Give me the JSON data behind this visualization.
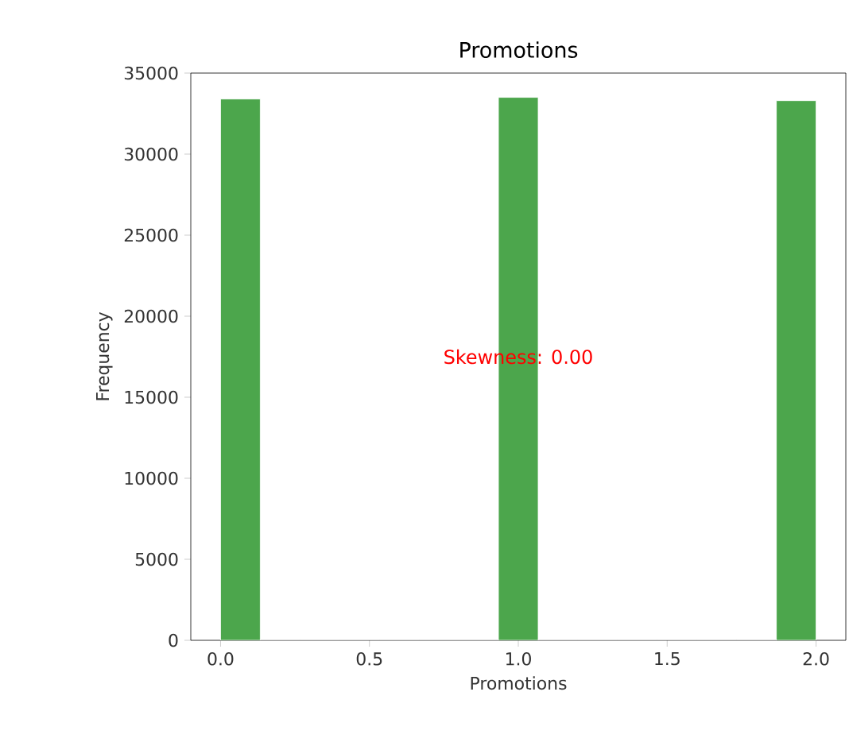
{
  "chart_data": {
    "type": "histogram",
    "title": "Promotions",
    "xlabel": "Promotions",
    "ylabel": "Frequency",
    "bins": [
      0,
      0.1333,
      0.2667,
      0.4,
      0.5333,
      0.6667,
      0.8,
      0.9333,
      1.0667,
      1.2,
      1.3333,
      1.4667,
      1.6,
      1.7333,
      1.8667,
      2
    ],
    "values": [
      33400,
      0,
      0,
      0,
      0,
      0,
      0,
      33500,
      0,
      0,
      0,
      0,
      0,
      0,
      33300
    ],
    "color": "#4ca64c",
    "xlim": [
      -0.1,
      2.1
    ],
    "ylim": [
      0,
      35000
    ],
    "xticks": [
      {
        "value": 0,
        "label": "0.0"
      },
      {
        "value": 0.5,
        "label": "0.5"
      },
      {
        "value": 1,
        "label": "1.0"
      },
      {
        "value": 1.5,
        "label": "1.5"
      },
      {
        "value": 2,
        "label": "2.0"
      }
    ],
    "yticks": [
      0,
      5000,
      10000,
      15000,
      20000,
      25000,
      30000,
      35000
    ],
    "annotations": [
      "Skewness: 0.00"
    ],
    "grid": false
  }
}
